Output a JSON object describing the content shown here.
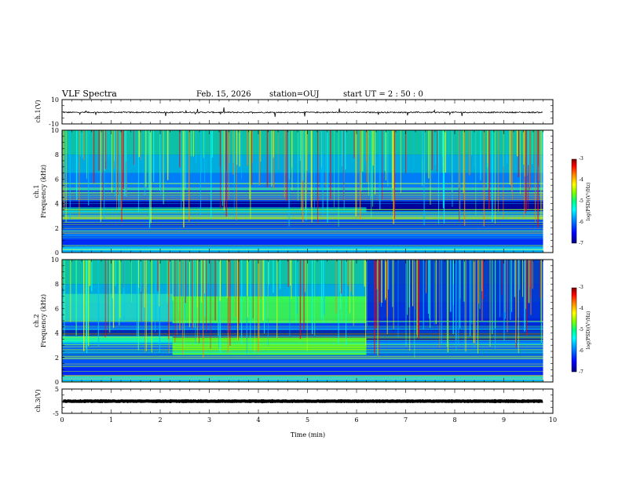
{
  "header": {
    "title": "VLF Spectra",
    "date": "Feb. 15, 2026",
    "station": "station=OUJ",
    "start": "start  UT =   2 : 50 : 0"
  },
  "colors": {
    "spectrogram_scale": [
      "#00007f",
      "#0000ff",
      "#00a0ff",
      "#00ffff",
      "#00ff80",
      "#80ff00",
      "#ffff00",
      "#ff8000",
      "#ff0000",
      "#7f0000"
    ]
  },
  "chart_data": [
    {
      "id": "ch1-waveform",
      "type": "line",
      "ylabel": "ch.1(V)",
      "yticks": [
        "10",
        "-10"
      ],
      "ylim": [
        -10,
        10
      ],
      "xlim": [
        0,
        10
      ],
      "series": [
        {
          "values_note_mean": -0.5,
          "spread": 1.0
        }
      ]
    },
    {
      "id": "ch1-spectrogram",
      "type": "heatmap",
      "ylabel": "ch.1 Frequency (kHz)",
      "ylabel_line1": "ch.1",
      "ylabel_line2": "Frequency (kHz)",
      "yticks": [
        "0",
        "2",
        "4",
        "6",
        "8",
        "10"
      ],
      "ylim": [
        0,
        10
      ],
      "xlim": [
        0,
        10
      ],
      "data_end_min": 9.8,
      "colorbar": {
        "label": "log(PSD)(V²/Hz)",
        "ticks": [
          "-3",
          "-4",
          "-5",
          "-6",
          "-7"
        ],
        "range": [
          -7,
          -3
        ]
      }
    },
    {
      "id": "ch2-spectrogram",
      "type": "heatmap",
      "ylabel": "ch.2 Frequency (kHz)",
      "ylabel_line1": "ch.2",
      "ylabel_line2": "Frequency (kHz)",
      "yticks": [
        "0",
        "2",
        "4",
        "6",
        "8",
        "10"
      ],
      "ylim": [
        0,
        10
      ],
      "xlim": [
        0,
        10
      ],
      "data_end_min": 9.8,
      "interference_segments_min": [
        [
          0,
          2.25
        ],
        [
          2.25,
          6.2
        ]
      ],
      "colorbar": {
        "label": "log(PSD)(V²/Hz)",
        "ticks": [
          "-3",
          "-4",
          "-5",
          "-6",
          "-7"
        ],
        "range": [
          -7,
          -3
        ]
      }
    },
    {
      "id": "ch3-waveform",
      "type": "line",
      "ylabel": "ch.3(V)",
      "yticks": [
        "5",
        "-5"
      ],
      "ylim": [
        -5,
        5
      ],
      "xlim": [
        0,
        10
      ],
      "series": [
        {
          "values_note_mean": 0,
          "spread": 0.2
        }
      ]
    }
  ],
  "xaxis": {
    "label": "Time  (min)",
    "ticks": [
      "0",
      "1",
      "2",
      "3",
      "4",
      "5",
      "6",
      "7",
      "8",
      "9",
      "10"
    ]
  }
}
